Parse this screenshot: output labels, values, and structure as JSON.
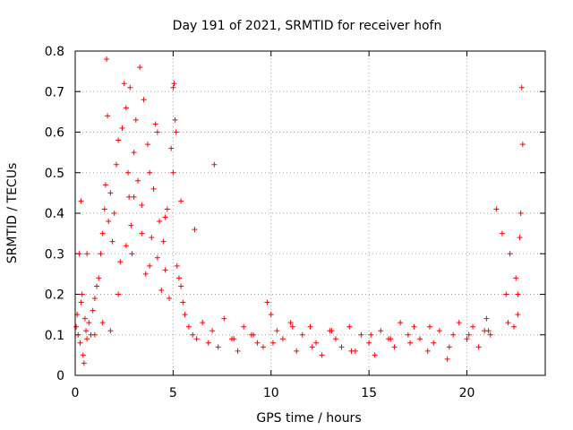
{
  "chart_data": {
    "type": "scatter",
    "title": "Day 191 of 2021, SRMTID for receiver hofn",
    "xlabel": "GPS time / hours",
    "ylabel": "SRMTID / TECUs",
    "xlim": [
      0,
      24
    ],
    "ylim": [
      0,
      0.8
    ],
    "xticks": [
      0,
      5,
      10,
      15,
      20
    ],
    "yticks": [
      0,
      0.1,
      0.2,
      0.3,
      0.4,
      0.5,
      0.6,
      0.7,
      0.8
    ],
    "xtick_labels": [
      "0",
      "5",
      "10",
      "15",
      "20"
    ],
    "ytick_labels": [
      "0",
      "0.1",
      "0.2",
      "0.3",
      "0.4",
      "0.5",
      "0.6",
      "0.7",
      "0.8"
    ],
    "grid": true,
    "marker": "+",
    "color": "#ff0000",
    "series": [
      {
        "name": "SRMTID",
        "x": [
          0.05,
          0.1,
          0.15,
          0.2,
          0.25,
          0.3,
          0.35,
          0.4,
          0.45,
          0.5,
          0.55,
          0.6,
          0.7,
          0.8,
          0.9,
          1.0,
          1.1,
          1.2,
          1.3,
          1.4,
          1.5,
          1.55,
          1.6,
          1.65,
          1.7,
          1.8,
          1.9,
          2.0,
          2.1,
          2.2,
          2.3,
          2.4,
          2.5,
          2.6,
          2.7,
          2.75,
          2.8,
          2.85,
          2.9,
          3.0,
          3.1,
          3.2,
          3.3,
          3.4,
          3.5,
          3.6,
          3.7,
          3.8,
          3.9,
          4.0,
          4.1,
          4.2,
          4.3,
          4.4,
          4.5,
          4.6,
          4.7,
          4.8,
          4.9,
          5.0,
          5.05,
          5.1,
          5.15,
          5.2,
          5.3,
          5.4,
          5.5,
          5.6,
          5.8,
          6.0,
          6.2,
          6.5,
          6.8,
          7.0,
          7.3,
          7.6,
          8.0,
          8.3,
          8.6,
          9.0,
          9.3,
          9.6,
          9.8,
          10.0,
          10.3,
          10.6,
          11.0,
          11.3,
          11.6,
          12.0,
          12.3,
          12.6,
          13.0,
          13.3,
          13.6,
          14.0,
          14.3,
          14.6,
          15.0,
          15.3,
          15.6,
          16.0,
          16.3,
          16.6,
          17.0,
          17.3,
          17.6,
          18.0,
          18.3,
          18.6,
          19.0,
          19.3,
          19.6,
          20.0,
          20.3,
          20.6,
          20.9,
          21.0,
          21.2,
          21.5,
          21.8,
          22.0,
          22.2,
          22.4,
          22.5,
          22.6,
          22.7,
          22.75,
          22.8,
          22.85,
          0.3,
          0.6,
          1.0,
          1.4,
          1.8,
          2.2,
          2.6,
          3.0,
          3.4,
          3.8,
          4.2,
          4.6,
          5.0,
          5.4,
          6.1,
          7.1,
          8.1,
          9.1,
          10.1,
          11.1,
          12.1,
          13.1,
          14.1,
          15.1,
          16.1,
          17.1,
          18.1,
          19.1,
          20.1,
          21.1,
          22.1,
          22.6
        ],
        "y": [
          0.12,
          0.15,
          0.1,
          0.3,
          0.08,
          0.18,
          0.2,
          0.05,
          0.03,
          0.14,
          0.11,
          0.09,
          0.13,
          0.1,
          0.16,
          0.19,
          0.22,
          0.24,
          0.3,
          0.35,
          0.41,
          0.47,
          0.78,
          0.64,
          0.38,
          0.45,
          0.33,
          0.4,
          0.52,
          0.58,
          0.28,
          0.61,
          0.72,
          0.66,
          0.5,
          0.44,
          0.71,
          0.37,
          0.3,
          0.55,
          0.63,
          0.48,
          0.76,
          0.42,
          0.68,
          0.25,
          0.57,
          0.5,
          0.34,
          0.46,
          0.62,
          0.29,
          0.38,
          0.21,
          0.33,
          0.26,
          0.41,
          0.19,
          0.56,
          0.71,
          0.72,
          0.63,
          0.6,
          0.27,
          0.24,
          0.22,
          0.18,
          0.15,
          0.12,
          0.1,
          0.09,
          0.13,
          0.08,
          0.11,
          0.07,
          0.14,
          0.09,
          0.06,
          0.12,
          0.1,
          0.08,
          0.07,
          0.18,
          0.15,
          0.11,
          0.09,
          0.13,
          0.06,
          0.1,
          0.12,
          0.08,
          0.05,
          0.11,
          0.09,
          0.07,
          0.12,
          0.06,
          0.1,
          0.08,
          0.05,
          0.11,
          0.09,
          0.07,
          0.13,
          0.1,
          0.12,
          0.09,
          0.06,
          0.08,
          0.11,
          0.04,
          0.1,
          0.13,
          0.09,
          0.12,
          0.07,
          0.11,
          0.14,
          0.1,
          0.41,
          0.35,
          0.2,
          0.3,
          0.12,
          0.24,
          0.15,
          0.34,
          0.4,
          0.71,
          0.57,
          0.43,
          0.3,
          0.1,
          0.13,
          0.11,
          0.2,
          0.32,
          0.44,
          0.35,
          0.27,
          0.6,
          0.39,
          0.5,
          0.43,
          0.36,
          0.52,
          0.09,
          0.1,
          0.08,
          0.12,
          0.07,
          0.11,
          0.06,
          0.1,
          0.09,
          0.08,
          0.12,
          0.07,
          0.1,
          0.11,
          0.13,
          0.2
        ]
      }
    ]
  }
}
